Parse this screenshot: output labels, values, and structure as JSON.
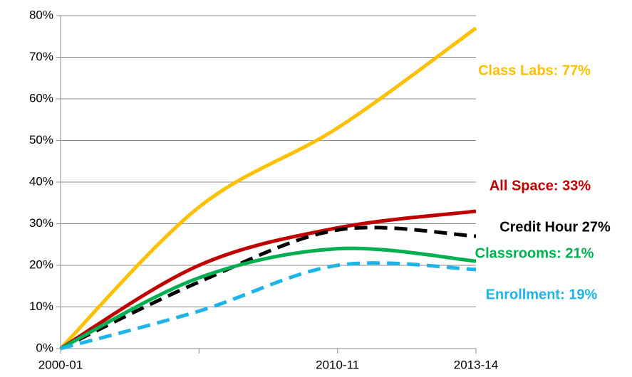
{
  "chart_data": {
    "type": "line",
    "categories": [
      "2000-01",
      null,
      "2010-11",
      "2013-14"
    ],
    "ylim": [
      0,
      80
    ],
    "yticks": [
      {
        "value": 0,
        "label": "0%"
      },
      {
        "value": 10,
        "label": "10%"
      },
      {
        "value": 20,
        "label": "20%"
      },
      {
        "value": 30,
        "label": "30%"
      },
      {
        "value": 40,
        "label": "40%"
      },
      {
        "value": 50,
        "label": "50%"
      },
      {
        "value": 60,
        "label": "60%"
      },
      {
        "value": 70,
        "label": "70%"
      },
      {
        "value": 80,
        "label": "80%"
      }
    ],
    "grid": true,
    "series": [
      {
        "name": "Class Labs: 77%",
        "color": "#ffc000",
        "style": "solid",
        "values": [
          0,
          34,
          53,
          77
        ]
      },
      {
        "name": "All Space: 33%",
        "color": "#c00000",
        "style": "solid",
        "values": [
          0,
          20,
          29,
          33
        ]
      },
      {
        "name": "Credit Hour 27%",
        "color": "#000000",
        "style": "dashed",
        "values": [
          0,
          16,
          28.5,
          27
        ]
      },
      {
        "name": "Classrooms: 21%",
        "color": "#00b050",
        "style": "solid",
        "values": [
          0,
          17,
          24,
          21
        ]
      },
      {
        "name": "Enrollment: 19%",
        "color": "#1fb4e8",
        "style": "dashed",
        "values": [
          0,
          9,
          20,
          19
        ]
      }
    ]
  }
}
